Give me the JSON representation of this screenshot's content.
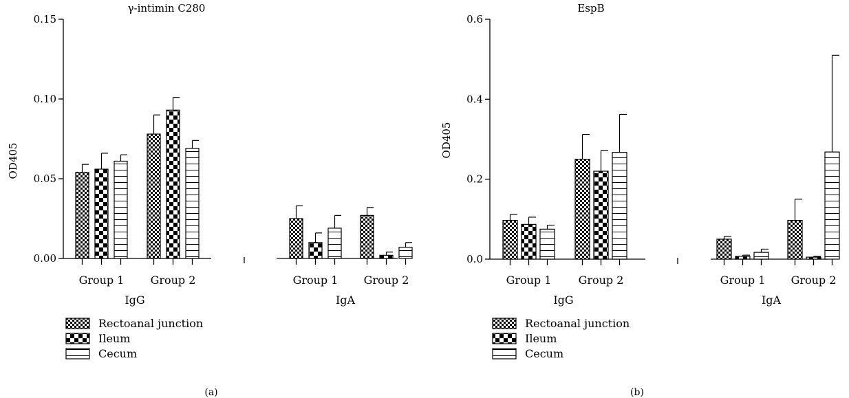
{
  "legend": [
    {
      "name": "Rectoanal junction",
      "pattern": "fine-check"
    },
    {
      "name": "Ileum",
      "pattern": "coarse-check"
    },
    {
      "name": "Cecum",
      "pattern": "horizontal-lines"
    }
  ],
  "chart_data": [
    {
      "type": "bar",
      "panel_label": "(a)",
      "title": "γ-intimin C280",
      "ylabel": "OD405",
      "xlabel": "",
      "ylim": [
        0,
        0.15
      ],
      "yticks": [
        0.0,
        0.05,
        0.1,
        0.15
      ],
      "ytick_labels": [
        "0.00",
        "0.05",
        "0.10",
        "0.15"
      ],
      "isotypes": [
        "IgG",
        "IgA"
      ],
      "categories": [
        "Group 1",
        "Group 2",
        "Group 1",
        "Group 2"
      ],
      "series": [
        {
          "name": "Rectoanal junction",
          "values": [
            0.054,
            0.078,
            0.025,
            0.027
          ],
          "errors": [
            0.005,
            0.012,
            0.008,
            0.005
          ]
        },
        {
          "name": "Ileum",
          "values": [
            0.056,
            0.093,
            0.01,
            0.002
          ],
          "errors": [
            0.01,
            0.008,
            0.006,
            0.002
          ]
        },
        {
          "name": "Cecum",
          "values": [
            0.061,
            0.069,
            0.019,
            0.007
          ],
          "errors": [
            0.004,
            0.005,
            0.008,
            0.003
          ]
        }
      ]
    },
    {
      "type": "bar",
      "panel_label": "(b)",
      "title": "EspB",
      "ylabel": "OD405",
      "xlabel": "",
      "ylim": [
        0,
        0.6
      ],
      "yticks": [
        0.0,
        0.2,
        0.4,
        0.6
      ],
      "ytick_labels": [
        "0.0",
        "0.2",
        "0.4",
        "0.6"
      ],
      "isotypes": [
        "IgG",
        "IgA"
      ],
      "categories": [
        "Group 1",
        "Group 2",
        "Group 1",
        "Group 2"
      ],
      "series": [
        {
          "name": "Rectoanal junction",
          "values": [
            0.097,
            0.25,
            0.05,
            0.097
          ],
          "errors": [
            0.015,
            0.062,
            0.007,
            0.053
          ]
        },
        {
          "name": "Ileum",
          "values": [
            0.087,
            0.22,
            0.007,
            0.005
          ],
          "errors": [
            0.018,
            0.052,
            0.003,
            0.002
          ]
        },
        {
          "name": "Cecum",
          "values": [
            0.075,
            0.267,
            0.017,
            0.268
          ],
          "errors": [
            0.01,
            0.095,
            0.008,
            0.242
          ]
        }
      ]
    }
  ]
}
